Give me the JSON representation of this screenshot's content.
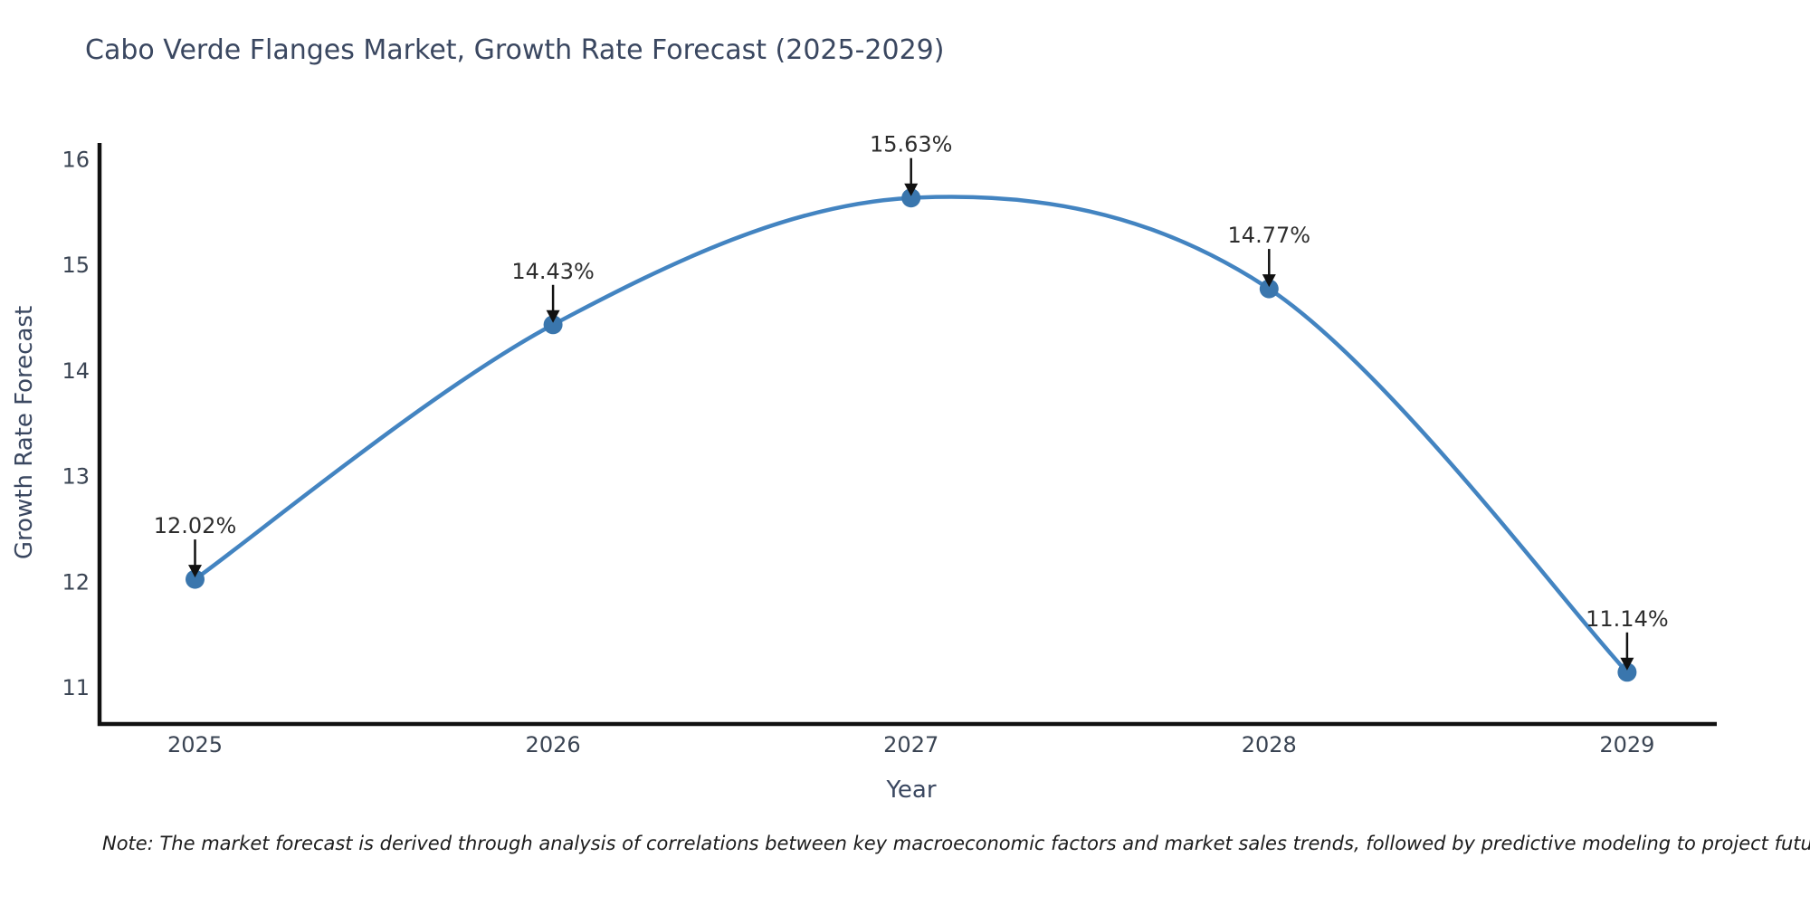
{
  "note": {
    "text": "Note: The market forecast is derived through analysis of correlations between key macroeconomic factors and market sales trends, followed by predictive modeling to project future sales"
  },
  "chart_data": {
    "type": "line",
    "title": "Cabo Verde Flanges Market, Growth Rate Forecast (2025-2029)",
    "xlabel": "Year",
    "ylabel": "Growth Rate Forecast",
    "categories": [
      "2025",
      "2026",
      "2027",
      "2028",
      "2029"
    ],
    "values": [
      12.02,
      14.43,
      15.63,
      14.77,
      11.14
    ],
    "point_labels": [
      "12.02%",
      "14.43%",
      "15.63%",
      "14.77%",
      "11.14%"
    ],
    "yticks": [
      11,
      12,
      13,
      14,
      15,
      16
    ],
    "ylim": [
      10.65,
      16.15
    ],
    "grid": false,
    "legend": "none",
    "marker": "circle",
    "annotation_style": "down-arrow",
    "colors": {
      "line": "#4384c1",
      "marker": "#3a76ad",
      "axis": "#111111",
      "arrow": "#111111",
      "title": "#3a4760",
      "tick_label": "#3a4453",
      "annotation": "#2d2d2d",
      "background": "#ffffff"
    }
  }
}
